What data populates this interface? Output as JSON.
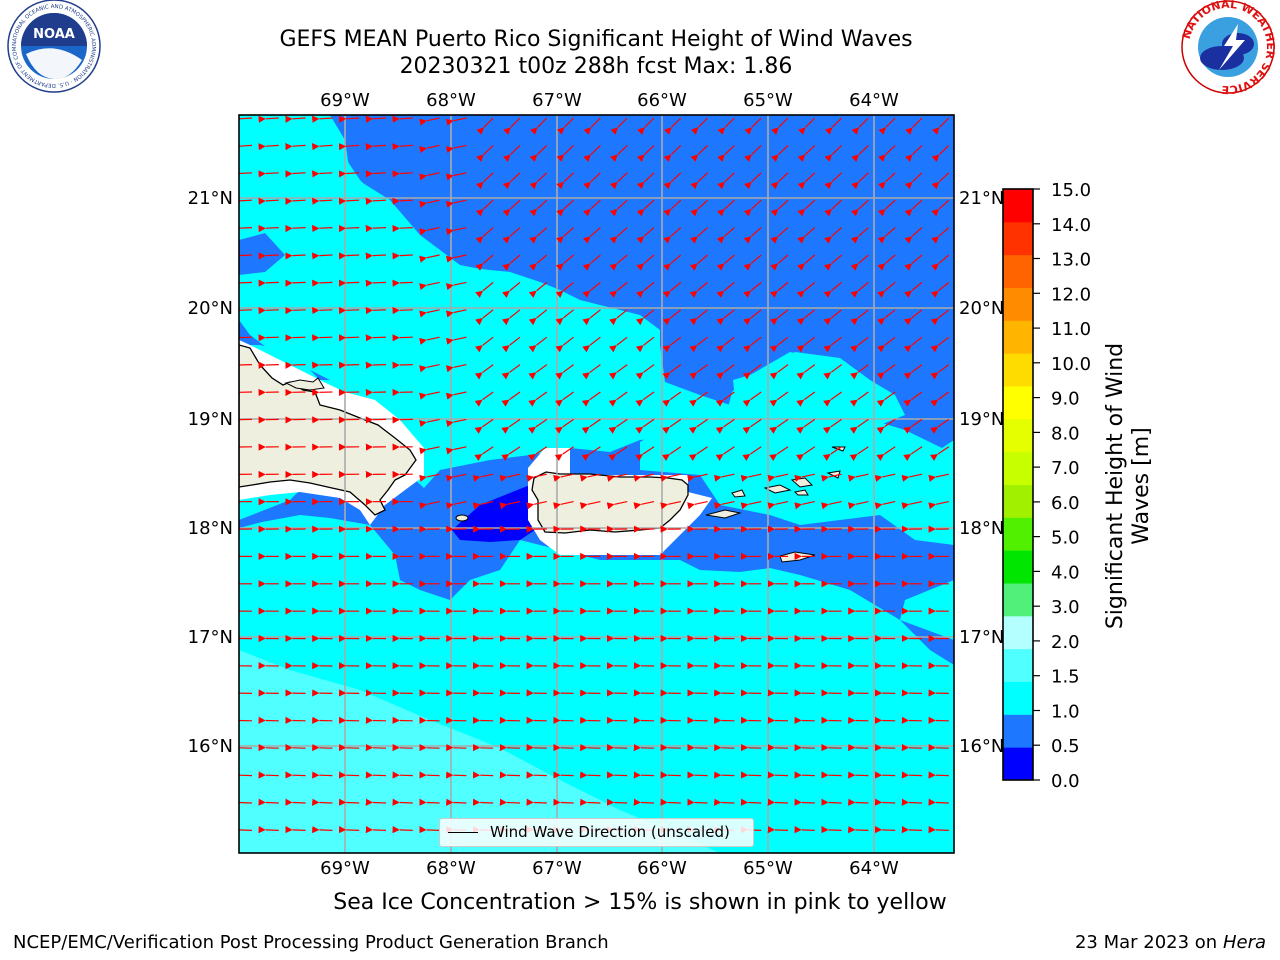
{
  "title": {
    "line1": "GEFS MEAN Puerto Rico Significant Height of Wind Waves",
    "line2": "20230321 t00z 288h fcst   Max: 1.86"
  },
  "map": {
    "lon_ticks": [
      "69°W",
      "68°W",
      "67°W",
      "66°W",
      "65°W",
      "64°W"
    ],
    "lat_ticks": [
      "21°N",
      "20°N",
      "19°N",
      "18°N",
      "17°N",
      "16°N"
    ],
    "land_color": "#efefdf",
    "arrow_color": "#ff0000"
  },
  "legend": {
    "label": "Wind Wave Direction (unscaled)"
  },
  "colorbar": {
    "label": "Significant Height of Wind Waves [m]",
    "ticks": [
      "15.0",
      "14.0",
      "13.0",
      "12.0",
      "11.0",
      "10.0",
      "9.0",
      "8.0",
      "7.0",
      "6.0",
      "5.0",
      "4.0",
      "3.0",
      "2.0",
      "1.5",
      "1.0",
      "0.5",
      "0.0"
    ],
    "colors_low_to_high": [
      "#0000ff",
      "#1e78ff",
      "#00ffff",
      "#50ffff",
      "#b4ffff",
      "#50f07a",
      "#00e600",
      "#50f000",
      "#a0f000",
      "#c8ff00",
      "#e6ff00",
      "#ffff00",
      "#ffdc00",
      "#ffb400",
      "#ff8c00",
      "#ff6400",
      "#ff3200",
      "#ff0000"
    ]
  },
  "note": "Sea Ice Concentration > 15% is shown in pink to yellow",
  "footer": {
    "left": "NCEP/EMC/Verification Post Processing Product Generation Branch",
    "date": "23 Mar 2023 on",
    "machine": "Hera"
  },
  "logos": {
    "noaa_text": "NOAA",
    "noaa_ring": "NATIONAL OCEANIC AND ATMOSPHERIC ADMINISTRATION · U.S. DEPARTMENT OF COMMERCE ·",
    "nws_ring": "NATIONAL WEATHER SERVICE"
  }
}
